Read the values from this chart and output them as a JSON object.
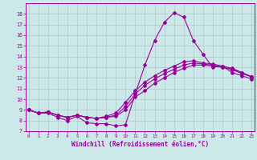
{
  "xlabel": "Windchill (Refroidissement éolien,°C)",
  "background_color": "#cce8e8",
  "grid_color": "#aacccc",
  "line_color": "#990099",
  "x_hours": [
    0,
    1,
    2,
    3,
    4,
    5,
    6,
    7,
    8,
    9,
    10,
    11,
    12,
    13,
    14,
    15,
    16,
    17,
    18,
    19,
    20,
    21,
    22,
    23
  ],
  "series1": [
    9.0,
    8.7,
    8.7,
    8.3,
    8.0,
    8.4,
    7.8,
    7.7,
    7.7,
    7.5,
    7.6,
    10.5,
    13.2,
    15.5,
    17.2,
    18.1,
    17.7,
    15.5,
    14.2,
    13.0,
    13.1,
    12.5,
    12.2,
    11.9
  ],
  "series2": [
    9.0,
    8.7,
    8.8,
    8.5,
    8.3,
    8.5,
    8.3,
    8.2,
    8.3,
    8.4,
    9.0,
    10.2,
    10.8,
    11.5,
    12.0,
    12.5,
    12.9,
    13.2,
    13.2,
    13.1,
    13.0,
    12.8,
    12.4,
    12.1
  ],
  "series3": [
    9.0,
    8.7,
    8.8,
    8.5,
    8.3,
    8.5,
    8.3,
    8.2,
    8.3,
    8.5,
    9.3,
    10.5,
    11.3,
    11.9,
    12.4,
    12.8,
    13.2,
    13.4,
    13.3,
    13.2,
    13.0,
    12.8,
    12.5,
    12.1
  ],
  "series4": [
    9.0,
    8.7,
    8.8,
    8.5,
    8.3,
    8.5,
    8.3,
    8.2,
    8.4,
    8.7,
    9.7,
    10.8,
    11.6,
    12.2,
    12.7,
    13.1,
    13.5,
    13.6,
    13.4,
    13.3,
    13.1,
    12.9,
    12.5,
    12.1
  ],
  "ylim": [
    7,
    19
  ],
  "xlim": [
    -0.3,
    23.3
  ],
  "yticks": [
    7,
    8,
    9,
    10,
    11,
    12,
    13,
    14,
    15,
    16,
    17,
    18
  ],
  "xticks": [
    0,
    1,
    2,
    3,
    4,
    5,
    6,
    7,
    8,
    9,
    10,
    11,
    12,
    13,
    14,
    15,
    16,
    17,
    18,
    19,
    20,
    21,
    22,
    23
  ]
}
